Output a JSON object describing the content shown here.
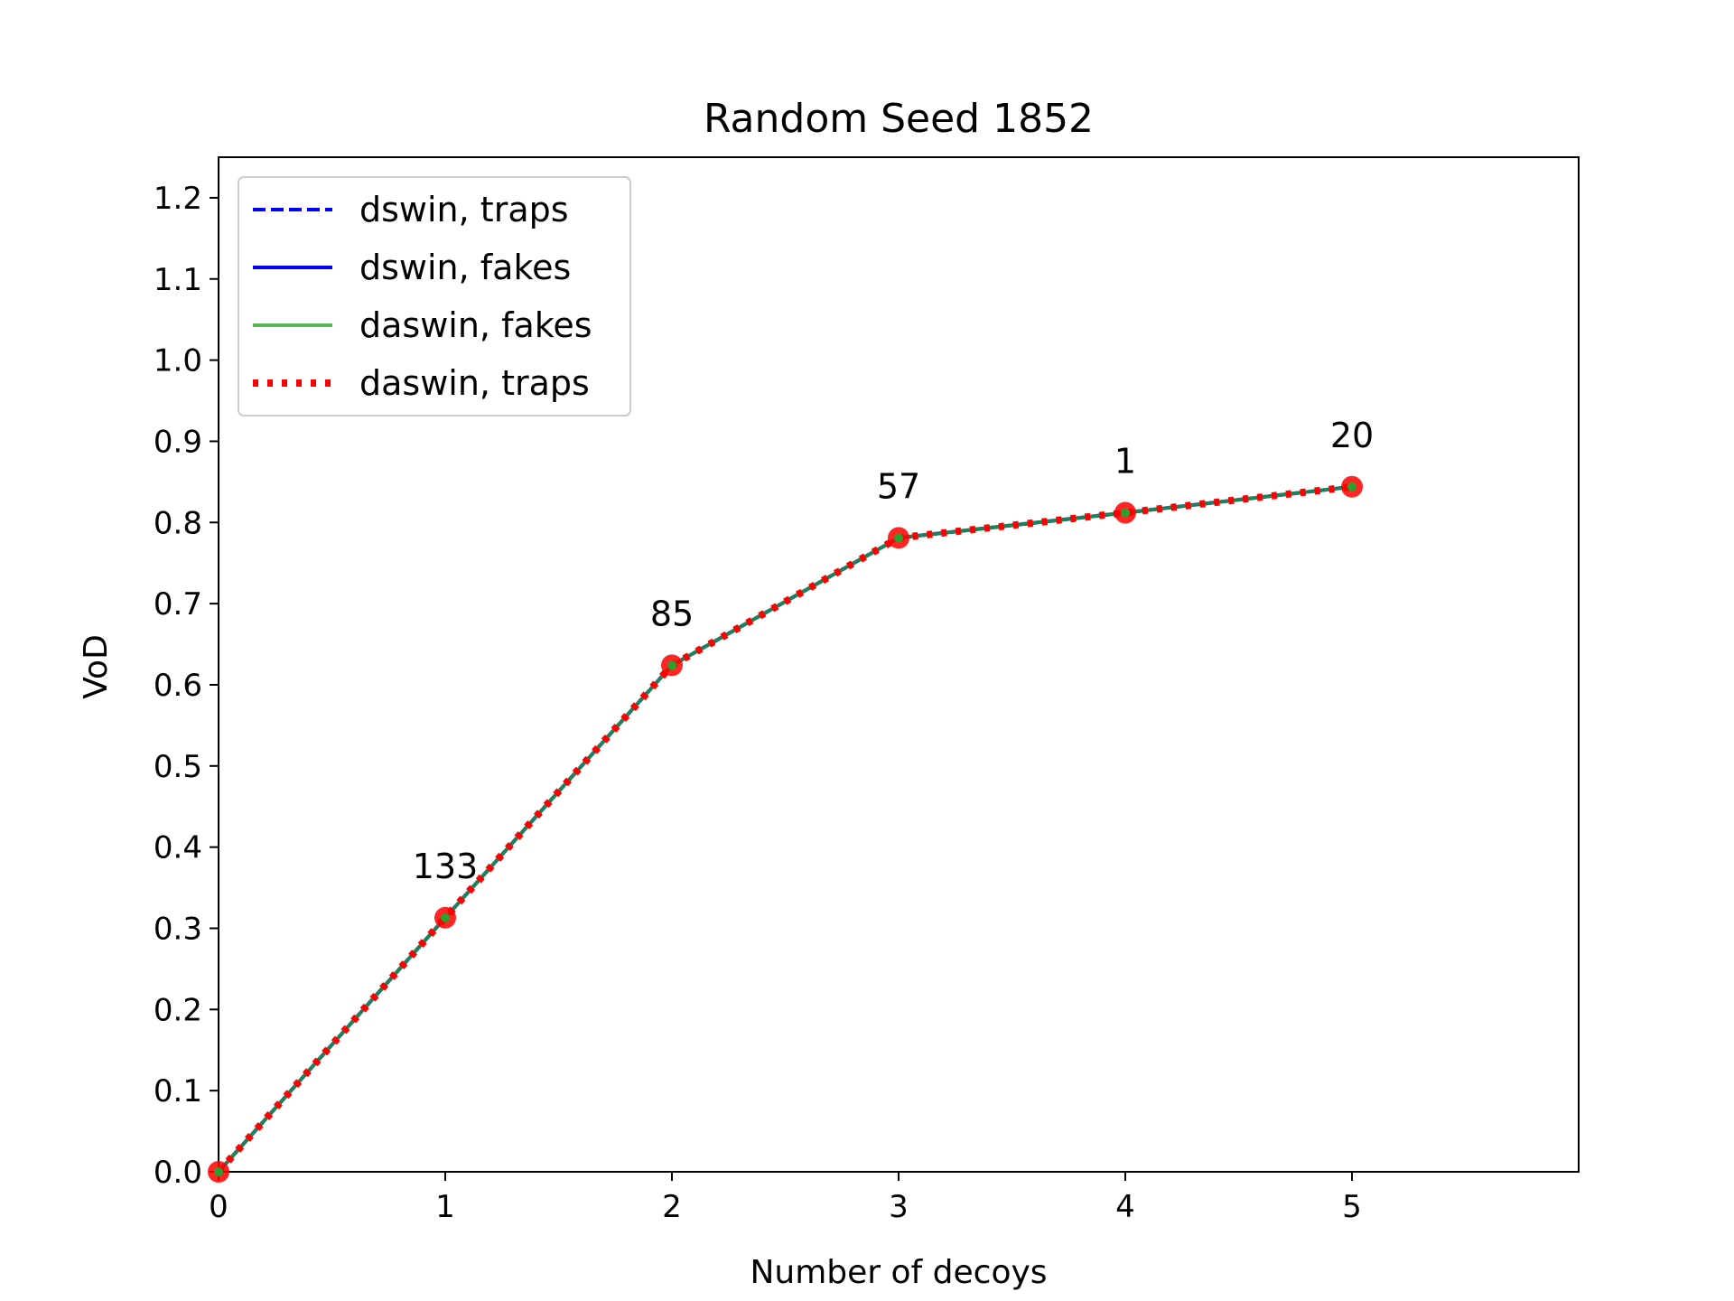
{
  "chart_data": {
    "type": "line",
    "title": "Random Seed 1852",
    "xlabel": "Number of decoys",
    "ylabel": "VoD",
    "x": [
      0,
      1,
      2,
      3,
      4,
      5
    ],
    "xlim": [
      0,
      6
    ],
    "ylim": [
      0,
      1.25
    ],
    "xticks": [
      "0",
      "1",
      "2",
      "3",
      "4",
      "5"
    ],
    "yticks": [
      "0.0",
      "0.1",
      "0.2",
      "0.3",
      "0.4",
      "0.5",
      "0.6",
      "0.7",
      "0.8",
      "0.9",
      "1.0",
      "1.1",
      "1.2"
    ],
    "grid": false,
    "legend_position": "top-left",
    "series": [
      {
        "name": "dswin, traps",
        "values": [
          0,
          0.313,
          0.624,
          0.781,
          0.812,
          0.844
        ],
        "color": "#0000ff",
        "style": "dashed"
      },
      {
        "name": "dswin, fakes",
        "values": [
          0,
          0.313,
          0.624,
          0.781,
          0.812,
          0.844
        ],
        "color": "#0000ff",
        "style": "solid"
      },
      {
        "name": "daswin, fakes",
        "values": [
          0,
          0.313,
          0.624,
          0.781,
          0.812,
          0.844
        ],
        "color": "#2ca02c",
        "style": "solid"
      },
      {
        "name": "daswin, traps",
        "values": [
          0,
          0.313,
          0.624,
          0.781,
          0.812,
          0.844
        ],
        "color": "#ff0000",
        "style": "dotted"
      }
    ],
    "point_labels": [
      "133",
      "85",
      "57",
      "1",
      "20"
    ],
    "marker_color": "#ff0000"
  }
}
